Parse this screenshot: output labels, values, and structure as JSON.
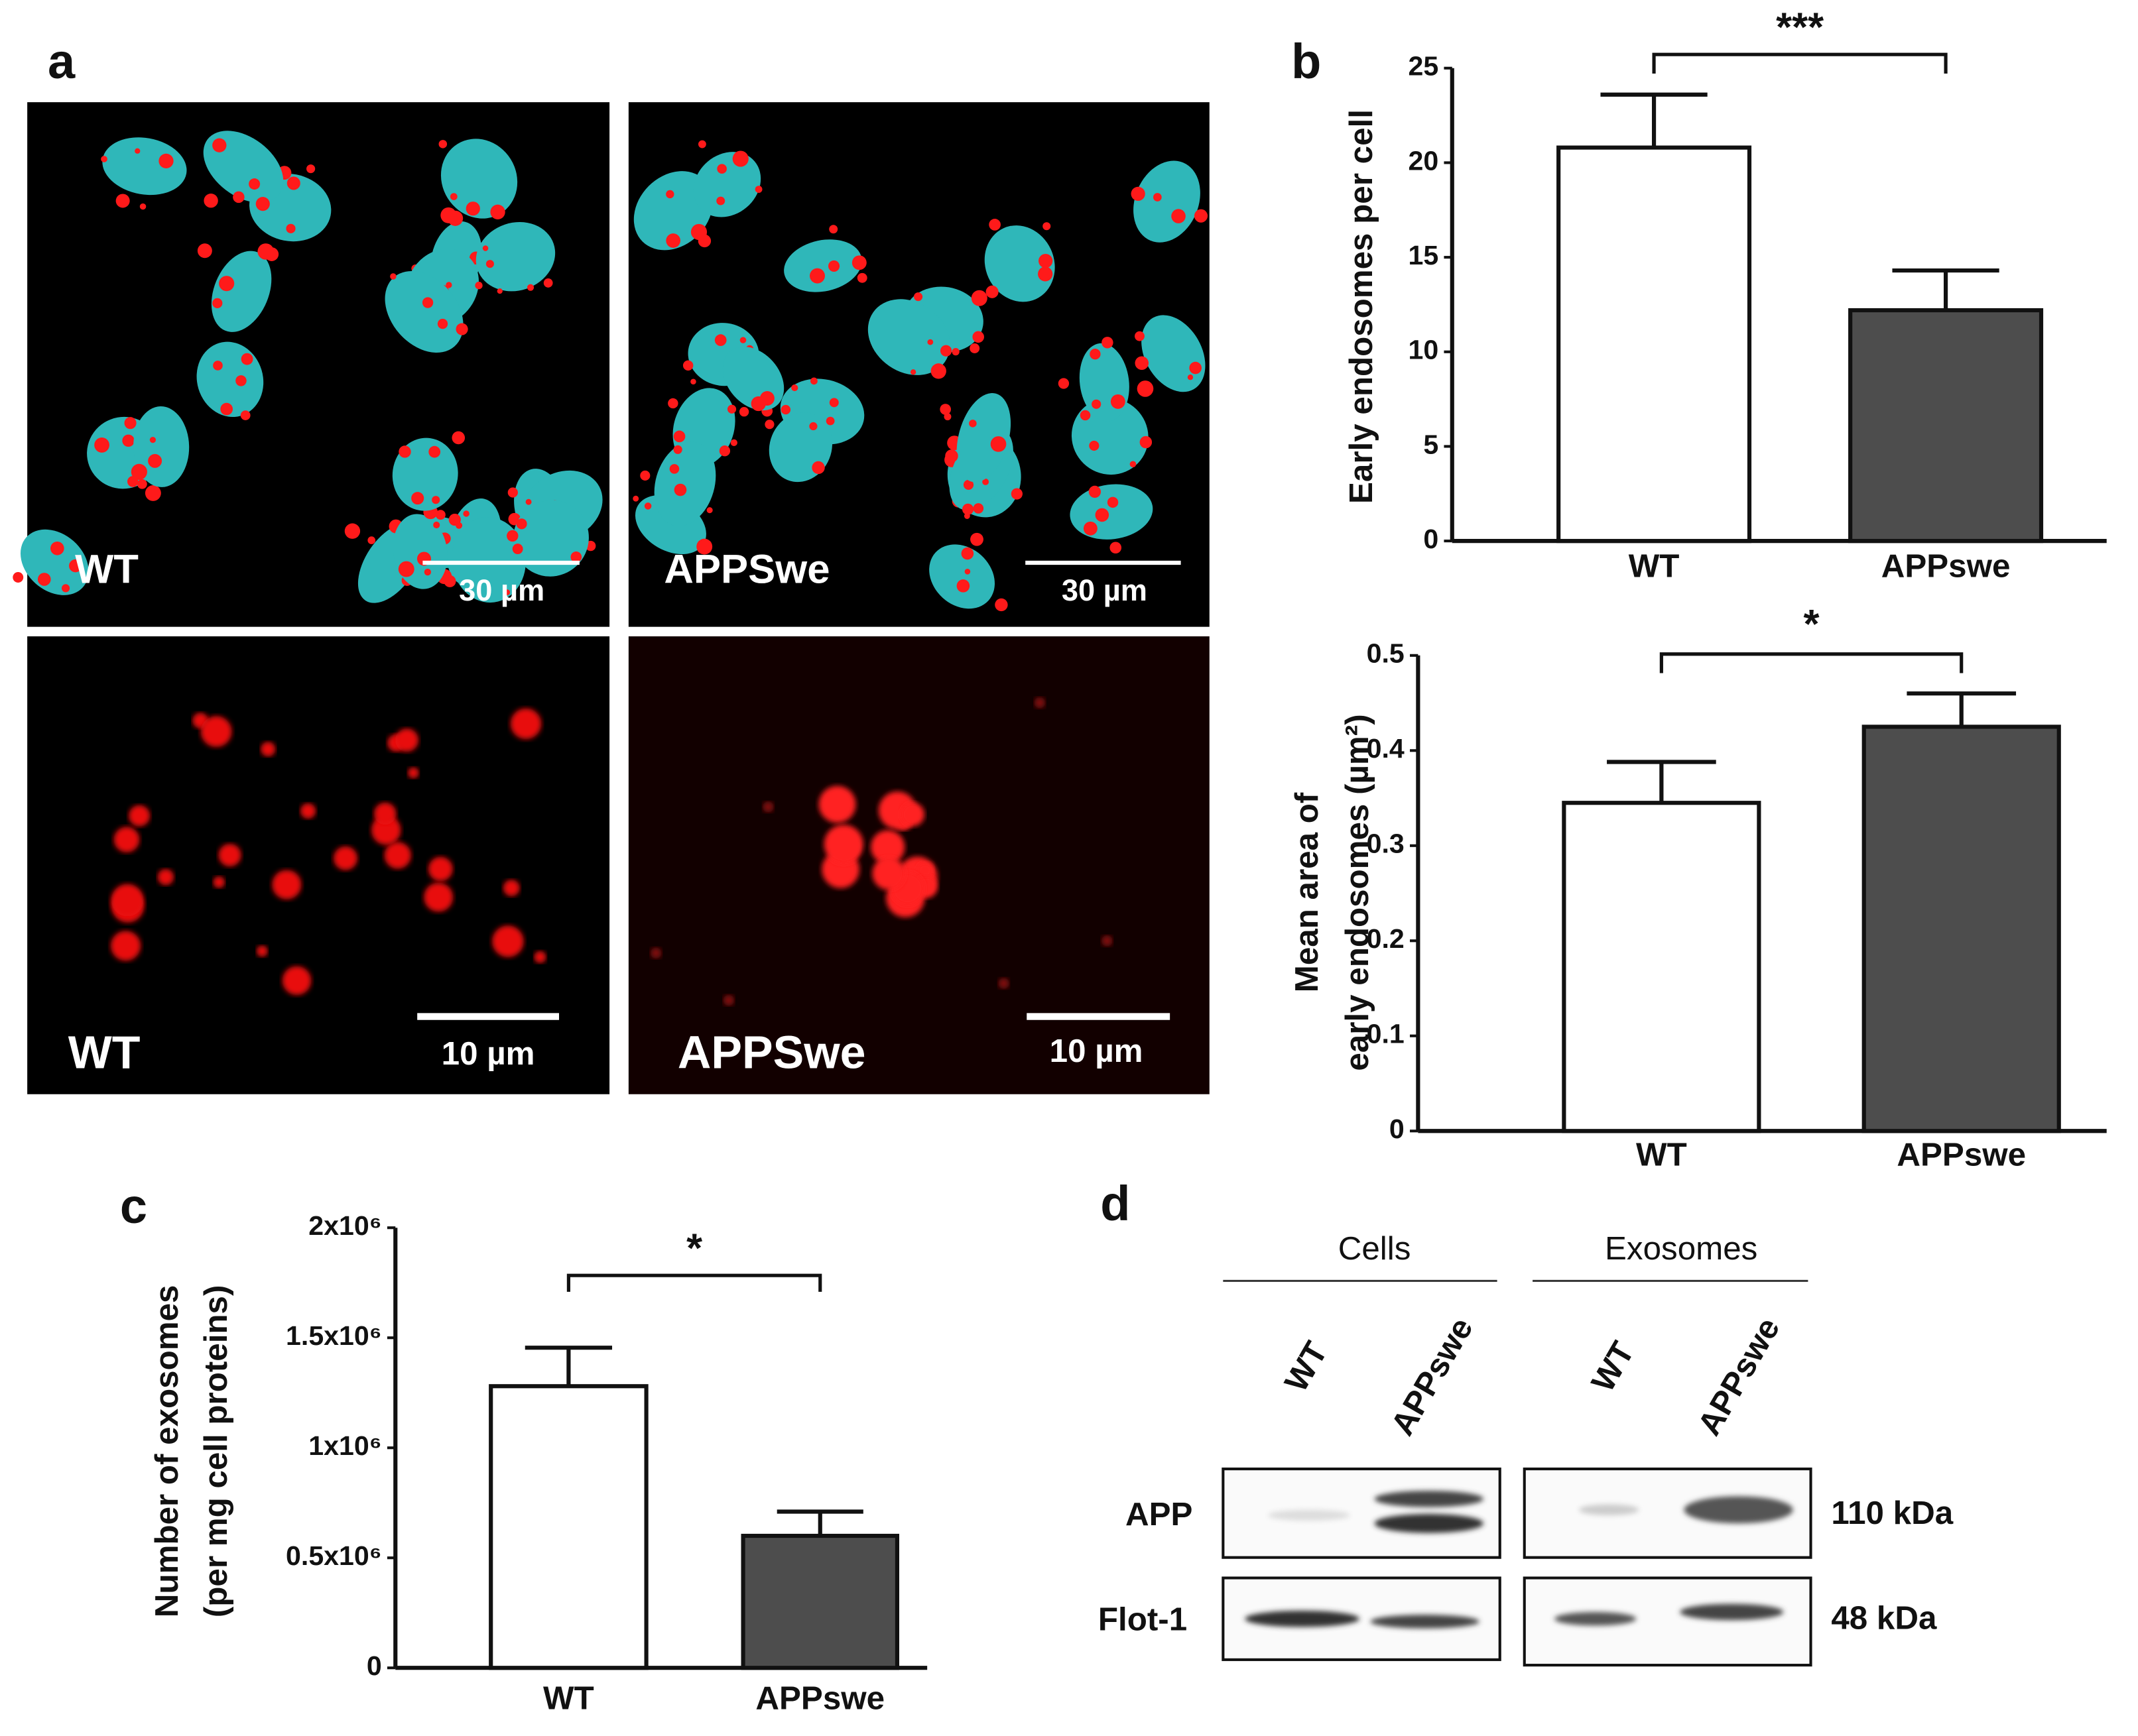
{
  "panel_labels": [
    "a",
    "b",
    "c",
    "d"
  ],
  "micrographs": [
    {
      "label": "WT",
      "scale": "30 µm"
    },
    {
      "label": "APPSwe",
      "scale": "30 µm"
    },
    {
      "label": "WT",
      "scale": "10 µm"
    },
    {
      "label": "APPSwe",
      "scale": "10 µm"
    }
  ],
  "chart_data": [
    {
      "type": "bar",
      "ylabel": [
        "Early endosomes per cell"
      ],
      "categories": [
        "WT",
        "APPswe"
      ],
      "values": [
        20.8,
        12.2
      ],
      "errors": [
        2.8,
        2.1
      ],
      "colors": [
        "#ffffff",
        "#4d4d4d"
      ],
      "ylim": [
        0,
        25
      ],
      "yticks": [
        0,
        5,
        10,
        15,
        20,
        25
      ],
      "annotation": "***"
    },
    {
      "type": "bar",
      "ylabel": [
        "Mean area of",
        "early endosomes (µm²)"
      ],
      "categories": [
        "WT",
        "APPswe"
      ],
      "values": [
        0.345,
        0.425
      ],
      "errors": [
        0.043,
        0.035
      ],
      "colors": [
        "#ffffff",
        "#4d4d4d"
      ],
      "ylim": [
        0,
        0.5
      ],
      "yticks": [
        0,
        0.1,
        0.2,
        0.3,
        0.4,
        0.5
      ],
      "annotation": "*"
    },
    {
      "type": "bar",
      "ylabel": [
        "Number of exosomes",
        "(per mg cell proteins)"
      ],
      "categories": [
        "WT",
        "APPswe"
      ],
      "values": [
        1280000,
        600000
      ],
      "errors": [
        175000,
        110000
      ],
      "colors": [
        "#ffffff",
        "#4d4d4d"
      ],
      "ylim": [
        0,
        2000000
      ],
      "yticks": [
        0,
        {
          "value": 500000,
          "label": "0.5x10⁶"
        },
        {
          "value": 1000000,
          "label": "1x10⁶"
        },
        {
          "value": 1500000,
          "label": "1.5x10⁶"
        },
        {
          "value": 2000000,
          "label": "2x10⁶"
        }
      ],
      "annotation": "*"
    }
  ],
  "blot": {
    "groups": [
      "Cells",
      "Exosomes"
    ],
    "lanes": [
      "WT",
      "APPswe",
      "WT",
      "APPswe"
    ],
    "rows": [
      {
        "label": "APP",
        "size": "110 kDa"
      },
      {
        "label": "Flot-1",
        "size": "48 kDa"
      }
    ]
  }
}
